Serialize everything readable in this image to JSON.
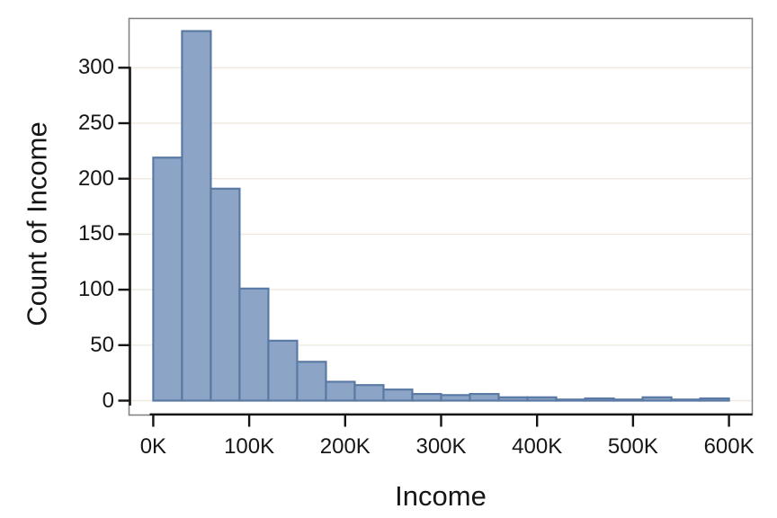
{
  "chart_data": {
    "type": "bar",
    "subtype": "histogram",
    "title": "",
    "xlabel": "Income",
    "ylabel": "Count of Income",
    "grid": true,
    "legend": "none",
    "xlim": [
      0,
      600000
    ],
    "ylim": [
      0,
      345
    ],
    "bin_width": 30000,
    "bins": [
      {
        "x0": 0,
        "x1": 30000,
        "count": 219
      },
      {
        "x0": 30000,
        "x1": 60000,
        "count": 333
      },
      {
        "x0": 60000,
        "x1": 90000,
        "count": 191
      },
      {
        "x0": 90000,
        "x1": 120000,
        "count": 101
      },
      {
        "x0": 120000,
        "x1": 150000,
        "count": 54
      },
      {
        "x0": 150000,
        "x1": 180000,
        "count": 35
      },
      {
        "x0": 180000,
        "x1": 210000,
        "count": 17
      },
      {
        "x0": 210000,
        "x1": 240000,
        "count": 14
      },
      {
        "x0": 240000,
        "x1": 270000,
        "count": 10
      },
      {
        "x0": 270000,
        "x1": 300000,
        "count": 6
      },
      {
        "x0": 300000,
        "x1": 330000,
        "count": 5
      },
      {
        "x0": 330000,
        "x1": 360000,
        "count": 6
      },
      {
        "x0": 360000,
        "x1": 390000,
        "count": 3
      },
      {
        "x0": 390000,
        "x1": 420000,
        "count": 3
      },
      {
        "x0": 420000,
        "x1": 450000,
        "count": 1
      },
      {
        "x0": 450000,
        "x1": 480000,
        "count": 2
      },
      {
        "x0": 480000,
        "x1": 510000,
        "count": 1
      },
      {
        "x0": 510000,
        "x1": 540000,
        "count": 3
      },
      {
        "x0": 540000,
        "x1": 570000,
        "count": 1
      },
      {
        "x0": 570000,
        "x1": 600000,
        "count": 2
      }
    ],
    "x_ticks": [
      {
        "value": 0,
        "label": "0K"
      },
      {
        "value": 100000,
        "label": "100K"
      },
      {
        "value": 200000,
        "label": "200K"
      },
      {
        "value": 300000,
        "label": "300K"
      },
      {
        "value": 400000,
        "label": "400K"
      },
      {
        "value": 500000,
        "label": "500K"
      },
      {
        "value": 600000,
        "label": "600K"
      }
    ],
    "y_ticks": [
      {
        "value": 0,
        "label": "0"
      },
      {
        "value": 50,
        "label": "50"
      },
      {
        "value": 100,
        "label": "100"
      },
      {
        "value": 150,
        "label": "150"
      },
      {
        "value": 200,
        "label": "200"
      },
      {
        "value": 250,
        "label": "250"
      },
      {
        "value": 300,
        "label": "300"
      }
    ],
    "colors": {
      "bar_fill": "#8ca4c5",
      "bar_stroke": "#5a7aa5",
      "gridline": "#efe9e1",
      "frame": "#7e7e7e",
      "axis": "#141414",
      "text": "#161616",
      "background": "#ffffff"
    }
  }
}
